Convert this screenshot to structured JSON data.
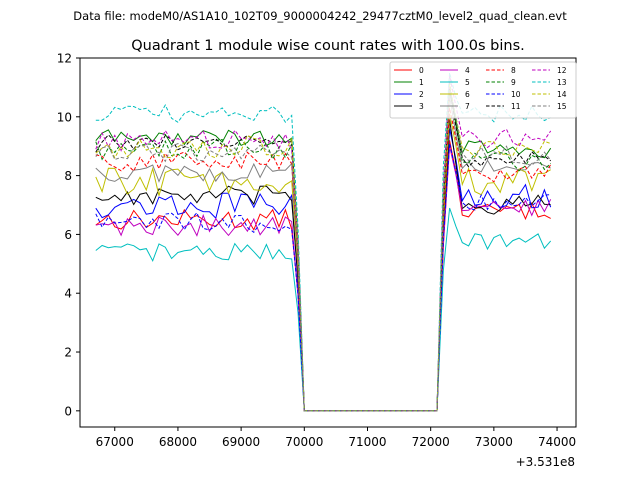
{
  "figure": {
    "suptitle": "Data file: modeM0/AS1A10_102T09_9000004242_29477cztM0_level2_quad_clean.evt"
  },
  "chart_data": {
    "type": "line",
    "title": "Quadrant 1 module wise count rates with 100.0s bins.",
    "xlabel": "",
    "ylabel": "",
    "x_offset_label": "+3.531e8",
    "xlim": [
      66450,
      74300
    ],
    "ylim": [
      -0.55,
      12.0
    ],
    "xticks": [
      67000,
      68000,
      69000,
      70000,
      71000,
      72000,
      73000,
      74000
    ],
    "xtick_labels": [
      "67000",
      "68000",
      "69000",
      "70000",
      "71000",
      "72000",
      "73000",
      "74000"
    ],
    "yticks": [
      0,
      2,
      4,
      6,
      8,
      10,
      12
    ],
    "ytick_labels": [
      "0",
      "2",
      "4",
      "6",
      "8",
      "10",
      "12"
    ],
    "legend": {
      "placement": "top-right",
      "columns": 4
    },
    "segments": {
      "seg1_start": 66700,
      "seg1_end": 69800,
      "fall_x": 69900,
      "gap_start": 70000,
      "gap_end": 72100,
      "seg2_start": 72200,
      "seg2_end": 73900,
      "bin": 100
    },
    "series": [
      {
        "name": "0",
        "color": "#ff0000",
        "dash": "solid",
        "base1": 6.5,
        "var1": 0.35,
        "peak": 9.2,
        "base2": 6.8,
        "var2": 0.3
      },
      {
        "name": "1",
        "color": "#008000",
        "dash": "solid",
        "base1": 9.3,
        "var1": 0.3,
        "peak": 10.9,
        "base2": 8.9,
        "var2": 0.3
      },
      {
        "name": "2",
        "color": "#0000ff",
        "dash": "solid",
        "base1": 7.0,
        "var1": 0.45,
        "peak": 9.6,
        "base2": 7.3,
        "var2": 0.4
      },
      {
        "name": "3",
        "color": "#000000",
        "dash": "solid",
        "base1": 7.3,
        "var1": 0.35,
        "peak": 9.9,
        "base2": 7.0,
        "var2": 0.35
      },
      {
        "name": "4",
        "color": "#bf00bf",
        "dash": "solid",
        "base1": 6.3,
        "var1": 0.35,
        "peak": 9.0,
        "base2": 6.9,
        "var2": 0.3
      },
      {
        "name": "5",
        "color": "#00bfbf",
        "dash": "solid",
        "base1": 5.4,
        "var1": 0.3,
        "peak": 6.9,
        "base2": 5.8,
        "var2": 0.3
      },
      {
        "name": "6",
        "color": "#bfbf00",
        "dash": "solid",
        "base1": 7.8,
        "var1": 0.5,
        "peak": 10.1,
        "base2": 7.8,
        "var2": 0.45
      },
      {
        "name": "7",
        "color": "#808080",
        "dash": "solid",
        "base1": 8.1,
        "var1": 0.35,
        "peak": 10.7,
        "base2": 8.3,
        "var2": 0.3
      },
      {
        "name": "8",
        "color": "#ff0000",
        "dash": "dashed",
        "base1": 8.5,
        "var1": 0.35,
        "peak": 10.3,
        "base2": 8.1,
        "var2": 0.35
      },
      {
        "name": "9",
        "color": "#008000",
        "dash": "dashed",
        "base1": 8.9,
        "var1": 0.35,
        "peak": 11.2,
        "base2": 8.5,
        "var2": 0.35
      },
      {
        "name": "10",
        "color": "#0000ff",
        "dash": "dashed",
        "base1": 6.4,
        "var1": 0.35,
        "peak": 9.1,
        "base2": 7.1,
        "var2": 0.35
      },
      {
        "name": "11",
        "color": "#000000",
        "dash": "dashed",
        "base1": 9.1,
        "var1": 0.3,
        "peak": 11.0,
        "base2": 8.6,
        "var2": 0.3
      },
      {
        "name": "12",
        "color": "#bf00bf",
        "dash": "dashed",
        "base1": 9.2,
        "var1": 0.35,
        "peak": 11.4,
        "base2": 9.3,
        "var2": 0.35
      },
      {
        "name": "13",
        "color": "#00bfbf",
        "dash": "dashed",
        "base1": 10.1,
        "var1": 0.3,
        "peak": 11.5,
        "base2": 10.1,
        "var2": 0.3
      },
      {
        "name": "14",
        "color": "#bfbf00",
        "dash": "dashed",
        "base1": 9.0,
        "var1": 0.4,
        "peak": 11.1,
        "base2": 8.9,
        "var2": 0.35
      },
      {
        "name": "15",
        "color": "#808080",
        "dash": "dashed",
        "base1": 8.8,
        "var1": 0.35,
        "peak": 11.0,
        "base2": 8.7,
        "var2": 0.35
      }
    ]
  }
}
